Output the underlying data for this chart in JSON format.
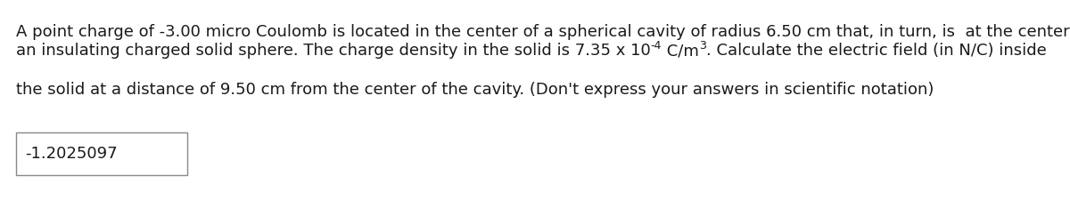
{
  "line1": "A point charge of -3.00 micro Coulomb is located in the center of a spherical cavity of radius 6.50 cm that, in turn, is  at the center of",
  "line2_pre": "an insulating charged solid sphere. The charge density in the solid is 7.35 x 10",
  "line2_sup1": "-4",
  "line2_mid": " C/m",
  "line2_sup2": "3",
  "line2_post": ". Calculate the electric field (in N/C) inside",
  "line3": "the solid at a distance of 9.50 cm from the center of the cavity. (Don't express your answers in scientific notation)",
  "answer": "-1.2025097",
  "font_size": 13.0,
  "sup_font_size": 9.0,
  "text_color": "#1a1a1a",
  "bg_color": "#ffffff"
}
